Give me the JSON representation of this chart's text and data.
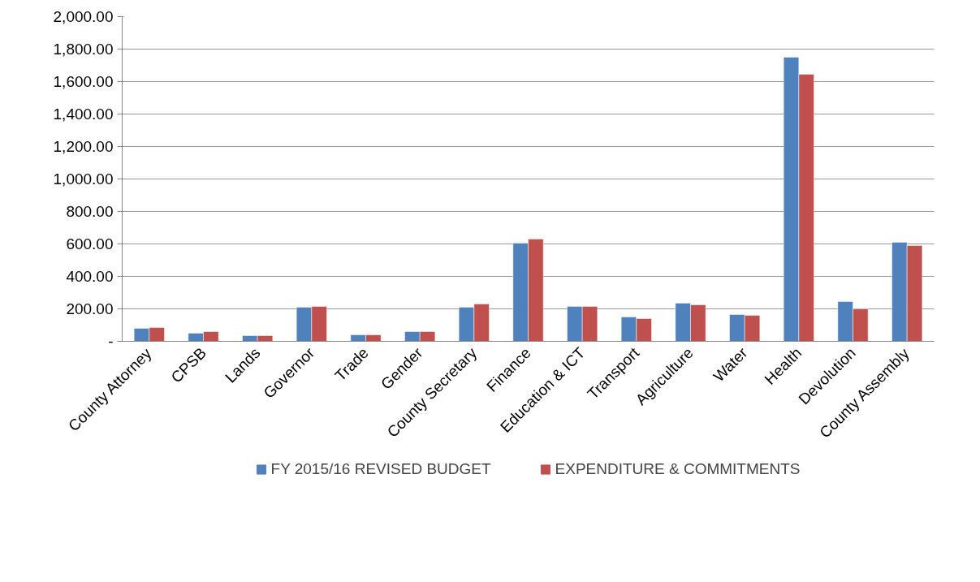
{
  "chart_data": {
    "type": "bar",
    "categories": [
      "County Attorney",
      "CPSB",
      "Lands",
      "Governor",
      "Trade",
      "Gender",
      "County Secretary",
      "Finance",
      "Education & ICT",
      "Transport",
      "Agriculture",
      "Water",
      "Health",
      "Devolution",
      "County Assembly"
    ],
    "series": [
      {
        "name": "FY 2015/16 REVISED BUDGET",
        "color": "#4f81bd",
        "values": [
          80,
          50,
          35,
          210,
          40,
          60,
          210,
          605,
          215,
          150,
          235,
          165,
          1750,
          245,
          610
        ]
      },
      {
        "name": "EXPENDITURE & COMMITMENTS",
        "color": "#c0504d",
        "values": [
          85,
          60,
          35,
          215,
          40,
          60,
          230,
          630,
          215,
          140,
          225,
          160,
          1645,
          200,
          590
        ]
      }
    ],
    "ylim": [
      0,
      2000
    ],
    "yticks": [
      {
        "value": 0,
        "label": "-"
      },
      {
        "value": 200,
        "label": "200.00"
      },
      {
        "value": 400,
        "label": "400.00"
      },
      {
        "value": 600,
        "label": "600.00"
      },
      {
        "value": 800,
        "label": "800.00"
      },
      {
        "value": 1000,
        "label": "1,000.00"
      },
      {
        "value": 1200,
        "label": "1,200.00"
      },
      {
        "value": 1400,
        "label": "1,400.00"
      },
      {
        "value": 1600,
        "label": "1,600.00"
      },
      {
        "value": 1800,
        "label": "1,800.00"
      },
      {
        "value": 2000,
        "label": "2,000.00"
      }
    ],
    "grid": "y",
    "legend": "bottom"
  }
}
